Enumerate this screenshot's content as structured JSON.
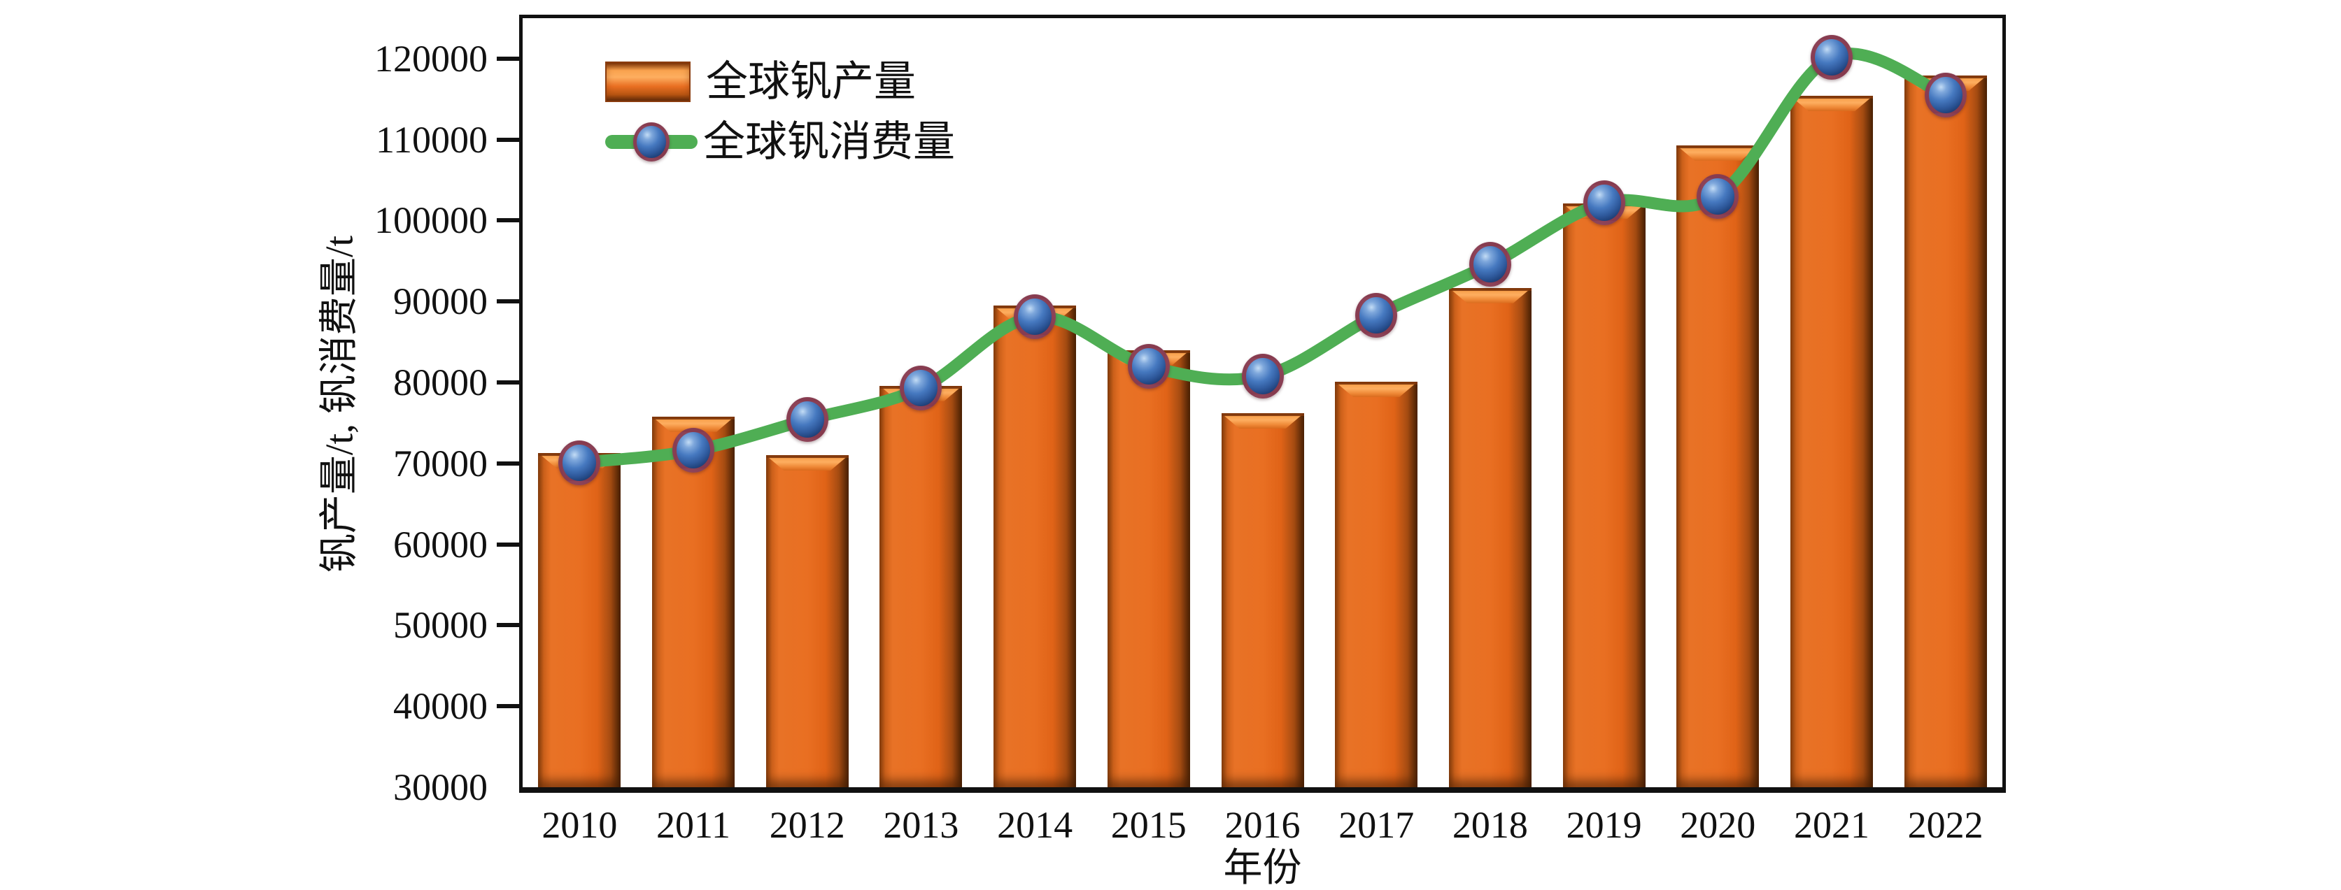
{
  "chart_data": {
    "type": "bar",
    "combo": "bar+line",
    "title": "",
    "xlabel": "年份",
    "ylabel": "钒产量/t, 钒消费量/t",
    "categories": [
      "2010",
      "2011",
      "2012",
      "2013",
      "2014",
      "2015",
      "2016",
      "2017",
      "2018",
      "2019",
      "2020",
      "2021",
      "2022"
    ],
    "series": [
      {
        "name": "全球钒产量",
        "type": "bar",
        "color": "#e96f22",
        "values": [
          71300,
          75800,
          71000,
          79600,
          89500,
          84000,
          76200,
          80100,
          91700,
          102100,
          109300,
          115400,
          117900
        ]
      },
      {
        "name": "全球钒消费量",
        "type": "line",
        "color": "#4fae54",
        "marker": "sphere",
        "marker_color": "#2f5a9d",
        "marker_ring_color": "#923b4a",
        "values": [
          70100,
          71600,
          75400,
          79300,
          88100,
          82000,
          80800,
          88300,
          94600,
          102200,
          103000,
          120200,
          115500
        ]
      }
    ],
    "ylim": [
      30000,
      125000
    ],
    "yticks": [
      30000,
      40000,
      50000,
      60000,
      70000,
      80000,
      90000,
      100000,
      110000,
      120000
    ],
    "grid": false,
    "legend_position": "top-left",
    "frame": true
  },
  "colors": {
    "bar_main": "#e96f22",
    "bar_highlight": "#fdae60",
    "bar_shadow": "#4f2405",
    "line_green": "#4fae54",
    "marker_blue": "#2f5a9d",
    "marker_highlight": "#c3dcf5",
    "marker_ring": "#923b4a",
    "axis": "#111111",
    "background": "#ffffff"
  }
}
